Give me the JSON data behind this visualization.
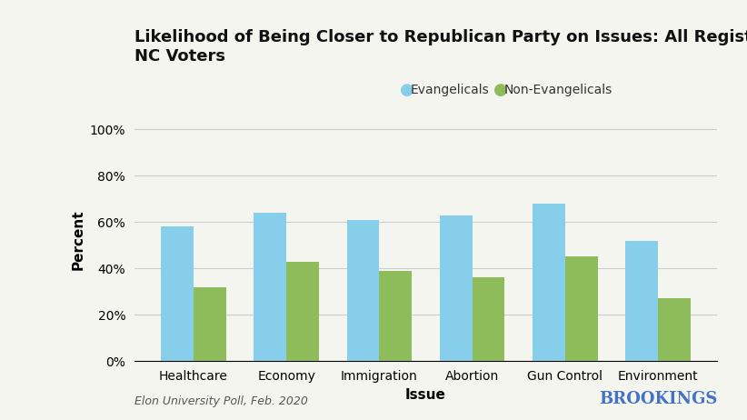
{
  "title": "Likelihood of Being Closer to Republican Party on Issues: All Registered White\nNC Voters",
  "categories": [
    "Healthcare",
    "Economy",
    "Immigration",
    "Abortion",
    "Gun Control",
    "Environment"
  ],
  "evangelicals": [
    0.58,
    0.64,
    0.61,
    0.63,
    0.68,
    0.52
  ],
  "non_evangelicals": [
    0.32,
    0.43,
    0.39,
    0.36,
    0.45,
    0.27
  ],
  "evangelical_color": "#87CEEB",
  "non_evangelical_color": "#8FBC5A",
  "xlabel": "Issue",
  "ylabel": "Percent",
  "yticks": [
    0,
    0.2,
    0.4,
    0.6,
    0.8,
    1.0
  ],
  "ytick_labels": [
    "0%",
    "20%",
    "40%",
    "60%",
    "80%",
    "100%"
  ],
  "ylim": [
    0,
    1.05
  ],
  "legend_labels": [
    "Evangelicals",
    "Non-Evangelicals"
  ],
  "footer_left": "Elon University Poll, Feb. 2020",
  "footer_right": "BROOKINGS",
  "footer_left_color": "#555555",
  "footer_right_color": "#4472C4",
  "background_color": "#F5F5F0",
  "grid_color": "#CCCCCC",
  "title_fontsize": 13,
  "axis_label_fontsize": 11,
  "tick_fontsize": 10,
  "legend_fontsize": 10,
  "bar_width": 0.35
}
